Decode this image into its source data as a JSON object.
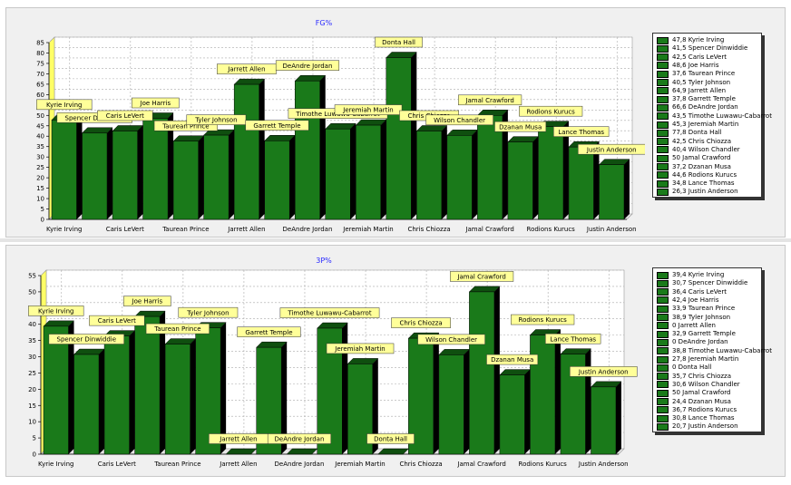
{
  "chart_data": [
    {
      "type": "bar",
      "title": "FG%",
      "ylim": [
        0,
        85
      ],
      "ytick_step": 5,
      "grid": true,
      "legend_position": "right",
      "bar_color": "#1a7a1a",
      "label_color": "#ffff99",
      "categories": [
        "Kyrie Irving",
        "Spencer Dinwiddie",
        "Caris LeVert",
        "Joe Harris",
        "Taurean Prince",
        "Tyler Johnson",
        "Jarrett Allen",
        "Garrett Temple",
        "DeAndre Jordan",
        "Timothe Luwawu-Cabarrot",
        "Jeremiah Martin",
        "Donta Hall",
        "Chris Chiozza",
        "Wilson Chandler",
        "Jamal Crawford",
        "Dzanan Musa",
        "Rodions Kurucs",
        "Lance Thomas",
        "Justin Anderson"
      ],
      "values": [
        47.8,
        41.5,
        42.5,
        48.6,
        37.6,
        40.5,
        64.9,
        37.8,
        66.6,
        43.5,
        45.3,
        77.8,
        42.5,
        40.4,
        50,
        37.2,
        44.6,
        34.8,
        26.3
      ],
      "x_tick_labels": [
        "Kyrie Irving",
        "Caris LeVert",
        "Taurean Prince",
        "Jarrett Allen",
        "DeAndre Jordan",
        "Jeremiah Martin",
        "Chris Chiozza",
        "Jamal Crawford",
        "Rodions Kurucs",
        "Justin Anderson"
      ],
      "legend_entries": [
        "47,8 Kyrie Irving",
        "41,5 Spencer Dinwiddie",
        "42,5 Caris LeVert",
        "48,6 Joe Harris",
        "37,6 Taurean Prince",
        "40,5 Tyler Johnson",
        "64,9 Jarrett Allen",
        "37,8 Garrett Temple",
        "66,6 DeAndre Jordan",
        "43,5 Timothe Luwawu-Cabarrot",
        "45,3 Jeremiah Martin",
        "77,8 Donta Hall",
        "42,5 Chris Chiozza",
        "40,4 Wilson Chandler",
        "50 Jamal Crawford",
        "37,2 Dzanan Musa",
        "44,6 Rodions Kurucs",
        "34,8 Lance Thomas",
        "26,3 Justin Anderson"
      ]
    },
    {
      "type": "bar",
      "title": "3P%",
      "ylim": [
        0,
        55
      ],
      "ytick_step": 5,
      "grid": true,
      "legend_position": "right",
      "bar_color": "#1a7a1a",
      "label_color": "#ffff99",
      "categories": [
        "Kyrie Irving",
        "Spencer Dinwiddie",
        "Caris LeVert",
        "Joe Harris",
        "Taurean Prince",
        "Tyler Johnson",
        "Jarrett Allen",
        "Garrett Temple",
        "DeAndre Jordan",
        "Timothe Luwawu-Cabarrot",
        "Jeremiah Martin",
        "Donta Hall",
        "Chris Chiozza",
        "Wilson Chandler",
        "Jamal Crawford",
        "Dzanan Musa",
        "Rodions Kurucs",
        "Lance Thomas",
        "Justin Anderson"
      ],
      "values": [
        39.4,
        30.7,
        36.4,
        42.4,
        33.9,
        38.9,
        0,
        32.9,
        0,
        38.8,
        27.8,
        0,
        35.7,
        30.6,
        50,
        24.4,
        36.7,
        30.8,
        20.7
      ],
      "x_tick_labels": [
        "Kyrie Irving",
        "Caris LeVert",
        "Taurean Prince",
        "Jarrett Allen",
        "DeAndre Jordan",
        "Jeremiah Martin",
        "Chris Chiozza",
        "Jamal Crawford",
        "Rodions Kurucs",
        "Justin Anderson"
      ],
      "legend_entries": [
        "39,4 Kyrie Irving",
        "30,7 Spencer Dinwiddie",
        "36,4 Caris LeVert",
        "42,4 Joe Harris",
        "33,9 Taurean Prince",
        "38,9 Tyler Johnson",
        "0 Jarrett Allen",
        "32,9 Garrett Temple",
        "0 DeAndre Jordan",
        "38,8 Timothe Luwawu-Cabarrot",
        "27,8 Jeremiah Martin",
        "0 Donta Hall",
        "35,7 Chris Chiozza",
        "30,6 Wilson Chandler",
        "50 Jamal Crawford",
        "24,4 Dzanan Musa",
        "36,7 Rodions Kurucs",
        "30,8 Lance Thomas",
        "20,7 Justin Anderson"
      ]
    }
  ]
}
